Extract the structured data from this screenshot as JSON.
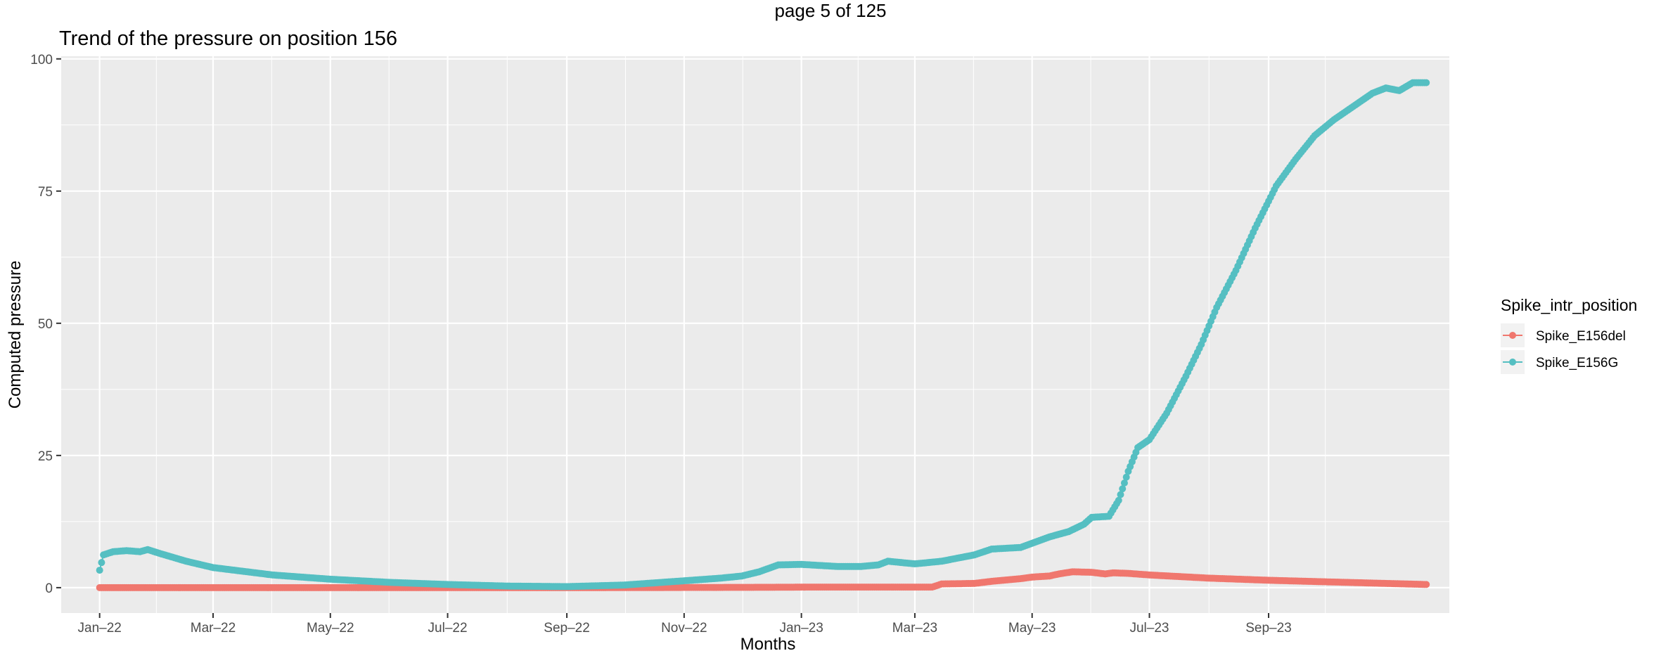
{
  "page_header": "page 5 of 125",
  "chart_data": {
    "type": "scatter",
    "title": "Trend of the pressure on position 156",
    "xlabel": "Months",
    "ylabel": "Computed pressure",
    "x_axis_type": "date",
    "xlim": [
      "2021-12-12",
      "2023-12-04"
    ],
    "ylim": [
      -4.8,
      100.5
    ],
    "x_ticks": [
      {
        "date": "2022-01-01",
        "label": "Jan–22"
      },
      {
        "date": "2022-03-01",
        "label": "Mar–22"
      },
      {
        "date": "2022-05-01",
        "label": "May–22"
      },
      {
        "date": "2022-07-01",
        "label": "Jul–22"
      },
      {
        "date": "2022-09-01",
        "label": "Sep–22"
      },
      {
        "date": "2022-11-01",
        "label": "Nov–22"
      },
      {
        "date": "2023-01-01",
        "label": "Jan–23"
      },
      {
        "date": "2023-03-01",
        "label": "Mar–23"
      },
      {
        "date": "2023-05-01",
        "label": "May–23"
      },
      {
        "date": "2023-07-01",
        "label": "Jul–23"
      },
      {
        "date": "2023-09-01",
        "label": "Sep–23"
      }
    ],
    "y_ticks": [
      0,
      25,
      50,
      75,
      100
    ],
    "grid": true,
    "background": "#ebebeb",
    "legend": {
      "title": "Spike_intr_position",
      "position": "right"
    },
    "series": [
      {
        "name": "Spike_E156del",
        "color": "#f0776e",
        "points": [
          [
            "2022-01-01",
            0.0
          ],
          [
            "2022-06-01",
            0.0
          ],
          [
            "2022-09-01",
            0.0
          ],
          [
            "2022-12-01",
            0.05
          ],
          [
            "2023-01-01",
            0.1
          ],
          [
            "2023-02-01",
            0.1
          ],
          [
            "2023-03-10",
            0.1
          ],
          [
            "2023-03-15",
            0.7
          ],
          [
            "2023-04-01",
            0.8
          ],
          [
            "2023-04-10",
            1.2
          ],
          [
            "2023-04-25",
            1.7
          ],
          [
            "2023-05-01",
            2.0
          ],
          [
            "2023-05-10",
            2.2
          ],
          [
            "2023-05-15",
            2.6
          ],
          [
            "2023-05-22",
            3.0
          ],
          [
            "2023-06-01",
            2.9
          ],
          [
            "2023-06-08",
            2.6
          ],
          [
            "2023-06-12",
            2.8
          ],
          [
            "2023-06-20",
            2.7
          ],
          [
            "2023-07-01",
            2.4
          ],
          [
            "2023-08-01",
            1.8
          ],
          [
            "2023-09-01",
            1.4
          ],
          [
            "2023-10-01",
            1.1
          ],
          [
            "2023-11-01",
            0.8
          ],
          [
            "2023-11-22",
            0.6
          ]
        ]
      },
      {
        "name": "Spike_E156G",
        "color": "#55bfc2",
        "points": [
          [
            "2022-01-01",
            3.3
          ],
          [
            "2022-01-03",
            6.2
          ],
          [
            "2022-01-08",
            6.8
          ],
          [
            "2022-01-15",
            7.0
          ],
          [
            "2022-01-22",
            6.8
          ],
          [
            "2022-01-26",
            7.2
          ],
          [
            "2022-02-01",
            6.5
          ],
          [
            "2022-02-15",
            5.0
          ],
          [
            "2022-03-01",
            3.8
          ],
          [
            "2022-04-01",
            2.4
          ],
          [
            "2022-05-01",
            1.6
          ],
          [
            "2022-06-01",
            1.0
          ],
          [
            "2022-07-01",
            0.6
          ],
          [
            "2022-08-01",
            0.3
          ],
          [
            "2022-09-01",
            0.2
          ],
          [
            "2022-10-01",
            0.5
          ],
          [
            "2022-11-01",
            1.3
          ],
          [
            "2022-11-20",
            1.8
          ],
          [
            "2022-12-01",
            2.2
          ],
          [
            "2022-12-10",
            3.0
          ],
          [
            "2022-12-20",
            4.3
          ],
          [
            "2023-01-01",
            4.4
          ],
          [
            "2023-01-20",
            4.0
          ],
          [
            "2023-02-01",
            4.0
          ],
          [
            "2023-02-10",
            4.3
          ],
          [
            "2023-02-15",
            5.0
          ],
          [
            "2023-03-01",
            4.5
          ],
          [
            "2023-03-15",
            5.0
          ],
          [
            "2023-04-01",
            6.2
          ],
          [
            "2023-04-10",
            7.3
          ],
          [
            "2023-04-25",
            7.6
          ],
          [
            "2023-05-01",
            8.4
          ],
          [
            "2023-05-10",
            9.6
          ],
          [
            "2023-05-20",
            10.6
          ],
          [
            "2023-05-28",
            12.0
          ],
          [
            "2023-06-01",
            13.3
          ],
          [
            "2023-06-10",
            13.5
          ],
          [
            "2023-06-15",
            16.5
          ],
          [
            "2023-06-20",
            22.0
          ],
          [
            "2023-06-25",
            26.5
          ],
          [
            "2023-07-01",
            28.0
          ],
          [
            "2023-07-10",
            33.0
          ],
          [
            "2023-07-20",
            40.0
          ],
          [
            "2023-07-28",
            46.0
          ],
          [
            "2023-08-05",
            53.0
          ],
          [
            "2023-08-15",
            60.0
          ],
          [
            "2023-08-25",
            68.0
          ],
          [
            "2023-09-05",
            76.0
          ],
          [
            "2023-09-15",
            81.0
          ],
          [
            "2023-09-25",
            85.5
          ],
          [
            "2023-10-05",
            88.5
          ],
          [
            "2023-10-15",
            91.0
          ],
          [
            "2023-10-25",
            93.5
          ],
          [
            "2023-11-01",
            94.5
          ],
          [
            "2023-11-08",
            94.0
          ],
          [
            "2023-11-15",
            95.5
          ],
          [
            "2023-11-22",
            95.5
          ]
        ]
      }
    ]
  }
}
